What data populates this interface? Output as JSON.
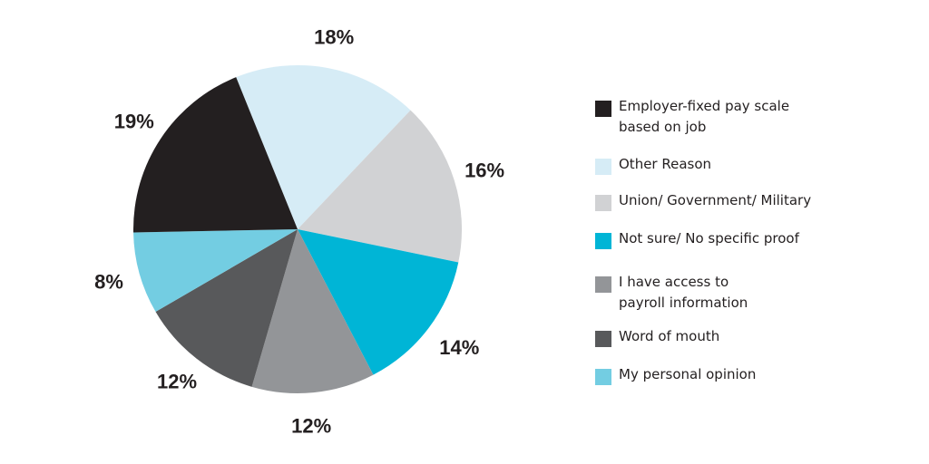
{
  "chart_data": {
    "type": "pie",
    "title": "",
    "slices": [
      {
        "label": "Other Reason",
        "value": 18,
        "display": "18%",
        "color": "#d6ecf6"
      },
      {
        "label": "Union/ Government/ Military",
        "value": 16,
        "display": "16%",
        "color": "#d1d2d4"
      },
      {
        "label": "Not sure/ No specific proof",
        "value": 14,
        "display": "14%",
        "color": "#00b5d6"
      },
      {
        "label": "I have access to payroll information",
        "value": 12,
        "display": "12%",
        "color": "#939598"
      },
      {
        "label": "Word of mouth",
        "value": 12,
        "display": "12%",
        "color": "#58595b"
      },
      {
        "label": "My personal opinion",
        "value": 8,
        "display": "8%",
        "color": "#73cde2"
      },
      {
        "label": "Employer-fixed pay scale based on job",
        "value": 19,
        "display": "19%",
        "color": "#231f20"
      }
    ],
    "legend": {
      "position": "right",
      "items": [
        {
          "label": "Employer-fixed pay scale based on job",
          "color": "#231f20"
        },
        {
          "label": "Other Reason",
          "color": "#d6ecf6"
        },
        {
          "label": "Union/ Government/ Military",
          "color": "#d1d2d4"
        },
        {
          "label": "Not sure/ No specific proof",
          "color": "#00b5d6"
        },
        {
          "label": "I have access to payroll information",
          "color": "#939598"
        },
        {
          "label": "Word of mouth",
          "color": "#58595b"
        },
        {
          "label": "My personal opinion",
          "color": "#73cde2"
        }
      ]
    }
  }
}
